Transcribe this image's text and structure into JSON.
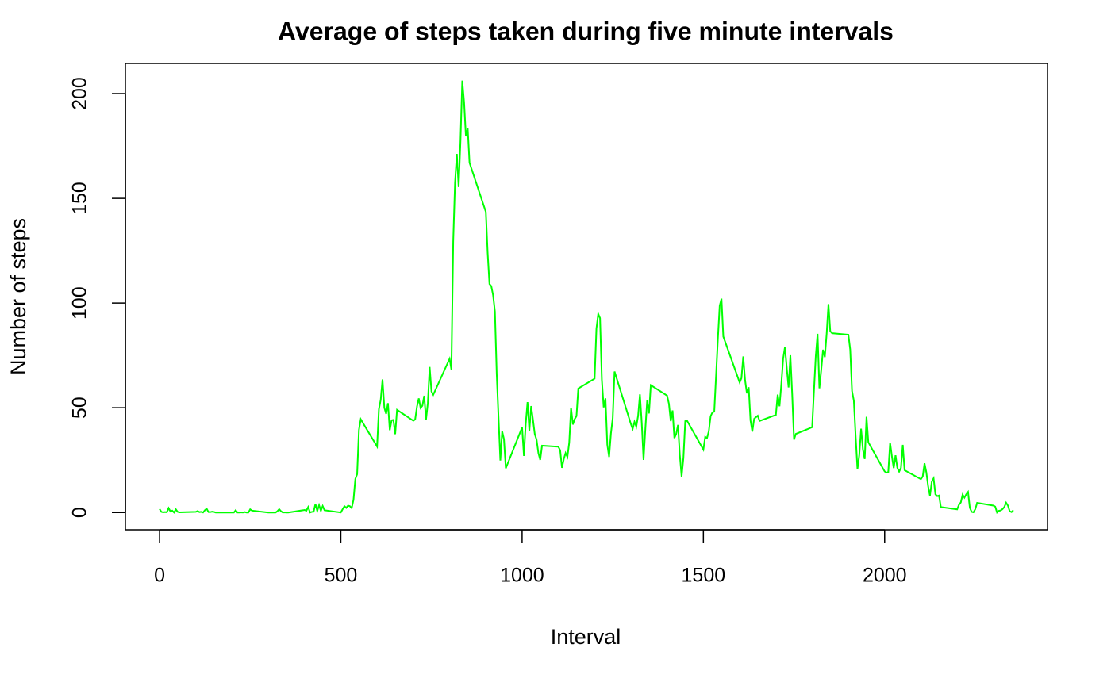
{
  "chart_data": {
    "type": "line",
    "title": "Average of steps taken during five minute intervals",
    "x_label": "Interval",
    "y_label": "Number of steps",
    "color": "#00ff00",
    "x": [
      0,
      5,
      10,
      15,
      20,
      25,
      30,
      35,
      40,
      45,
      50,
      55,
      100,
      105,
      110,
      115,
      120,
      125,
      130,
      135,
      140,
      145,
      150,
      155,
      200,
      205,
      210,
      215,
      220,
      225,
      230,
      235,
      240,
      245,
      250,
      255,
      300,
      305,
      310,
      315,
      320,
      325,
      330,
      335,
      340,
      345,
      350,
      355,
      400,
      405,
      410,
      415,
      420,
      425,
      430,
      435,
      440,
      445,
      450,
      455,
      500,
      505,
      510,
      515,
      520,
      525,
      530,
      535,
      540,
      545,
      550,
      555,
      600,
      605,
      610,
      615,
      620,
      625,
      630,
      635,
      640,
      645,
      650,
      655,
      700,
      705,
      710,
      715,
      720,
      725,
      730,
      735,
      740,
      745,
      750,
      755,
      800,
      805,
      810,
      815,
      820,
      825,
      830,
      835,
      840,
      845,
      850,
      855,
      900,
      905,
      910,
      915,
      920,
      925,
      930,
      935,
      940,
      945,
      950,
      955,
      1000,
      1005,
      1010,
      1015,
      1020,
      1025,
      1030,
      1035,
      1040,
      1045,
      1050,
      1055,
      1100,
      1105,
      1110,
      1115,
      1120,
      1125,
      1130,
      1135,
      1140,
      1145,
      1150,
      1155,
      1200,
      1205,
      1210,
      1215,
      1220,
      1225,
      1230,
      1235,
      1240,
      1245,
      1250,
      1255,
      1300,
      1305,
      1310,
      1315,
      1320,
      1325,
      1330,
      1335,
      1340,
      1345,
      1350,
      1355,
      1400,
      1405,
      1410,
      1415,
      1420,
      1425,
      1430,
      1435,
      1440,
      1445,
      1450,
      1455,
      1500,
      1505,
      1510,
      1515,
      1520,
      1525,
      1530,
      1535,
      1540,
      1545,
      1550,
      1555,
      1600,
      1605,
      1610,
      1615,
      1620,
      1625,
      1630,
      1635,
      1640,
      1645,
      1650,
      1655,
      1700,
      1705,
      1710,
      1715,
      1720,
      1725,
      1730,
      1735,
      1740,
      1745,
      1750,
      1755,
      1800,
      1805,
      1810,
      1815,
      1820,
      1825,
      1830,
      1835,
      1840,
      1845,
      1850,
      1855,
      1900,
      1905,
      1910,
      1915,
      1920,
      1925,
      1930,
      1935,
      1940,
      1945,
      1950,
      1955,
      2000,
      2005,
      2010,
      2015,
      2020,
      2025,
      2030,
      2035,
      2040,
      2045,
      2050,
      2055,
      2100,
      2105,
      2110,
      2115,
      2120,
      2125,
      2130,
      2135,
      2140,
      2145,
      2150,
      2155,
      2200,
      2205,
      2210,
      2215,
      2220,
      2225,
      2230,
      2235,
      2240,
      2245,
      2250,
      2255,
      2300,
      2305,
      2310,
      2315,
      2320,
      2325,
      2330,
      2335,
      2340,
      2345,
      2350,
      2355
    ],
    "values": [
      1.7,
      0.3,
      0.1,
      0.2,
      0.1,
      2.1,
      0.5,
      0.9,
      0,
      1.5,
      0.3,
      0.1,
      0.3,
      0.7,
      0.2,
      0.3,
      0,
      1.1,
      1.8,
      0.2,
      0.2,
      0.4,
      0.3,
      0,
      0,
      0,
      1.1,
      0,
      0,
      0.1,
      0,
      0.2,
      0,
      0,
      1.5,
      0.9,
      0,
      0,
      0,
      0,
      0,
      0.6,
      1.6,
      0.6,
      0,
      0.1,
      0,
      0,
      1.2,
      0.9,
      2.6,
      0,
      0.3,
      0.4,
      4.1,
      0.7,
      3.5,
      0.8,
      3.1,
      1.1,
      0,
      1.6,
      3.0,
      2.2,
      3.3,
      3.0,
      2.1,
      6.1,
      16.0,
      18.3,
      39.5,
      44.5,
      31.5,
      49.3,
      53.8,
      63.5,
      50.0,
      47.1,
      52.2,
      39.3,
      44.0,
      44.2,
      37.4,
      49.0,
      43.8,
      44.4,
      50.5,
      54.5,
      49.9,
      51.0,
      55.7,
      44.3,
      52.3,
      69.5,
      57.8,
      56.2,
      73.4,
      68.2,
      129.4,
      157.5,
      171.2,
      155.4,
      177.3,
      206.2,
      195.9,
      179.6,
      183.4,
      167.0,
      143.5,
      124.0,
      109.1,
      108.1,
      103.7,
      96.0,
      66.2,
      45.2,
      24.8,
      38.8,
      35.0,
      21.1,
      40.6,
      27.0,
      42.4,
      52.7,
      38.9,
      50.8,
      44.3,
      37.4,
      34.7,
      28.3,
      25.1,
      31.9,
      31.4,
      29.7,
      21.3,
      25.5,
      28.4,
      26.5,
      33.4,
      50.0,
      42.0,
      44.6,
      46.0,
      59.2,
      63.9,
      87.7,
      94.8,
      92.8,
      63.4,
      50.2,
      54.5,
      32.4,
      26.5,
      37.7,
      45.1,
      67.3,
      42.3,
      39.9,
      43.3,
      41.0,
      46.2,
      56.4,
      42.8,
      25.1,
      40.0,
      53.5,
      47.3,
      60.8,
      55.8,
      51.9,
      43.6,
      48.7,
      35.5,
      37.5,
      41.8,
      27.5,
      17.1,
      26.1,
      43.6,
      43.8,
      30.0,
      36.1,
      35.5,
      38.8,
      46.0,
      47.8,
      48.1,
      65.3,
      82.9,
      98.7,
      102.1,
      84.0,
      62.1,
      64.1,
      74.5,
      63.2,
      56.9,
      59.8,
      43.9,
      38.6,
      44.7,
      45.5,
      46.2,
      43.7,
      46.6,
      56.3,
      50.7,
      61.2,
      73.4,
      79.0,
      68.9,
      59.7,
      75.1,
      56.5,
      34.8,
      37.5,
      40.7,
      58.0,
      74.7,
      85.3,
      59.3,
      67.8,
      77.7,
      74.2,
      85.3,
      99.5,
      86.6,
      85.6,
      84.9,
      77.8,
      58.0,
      53.4,
      36.3,
      20.7,
      27.4,
      40.0,
      30.2,
      25.5,
      45.7,
      33.5,
      19.6,
      19.0,
      19.3,
      33.3,
      26.8,
      21.2,
      27.3,
      21.3,
      19.5,
      21.3,
      32.3,
      20.2,
      15.9,
      17.2,
      23.5,
      19.2,
      12.5,
      8.0,
      14.7,
      16.3,
      8.7,
      7.8,
      8.1,
      2.6,
      1.5,
      3.7,
      4.8,
      8.5,
      7.1,
      8.7,
      9.8,
      2.2,
      0.3,
      0.1,
      1.6,
      4.6,
      3.3,
      2.8,
      0,
      0.8,
      1.0,
      1.6,
      2.6,
      4.7,
      3.3,
      0.6,
      0.2,
      1.1
    ],
    "xlim": [
      -94.2,
      2449.2
    ],
    "ylim": [
      -8.25,
      214.4
    ],
    "xticks": [
      0,
      500,
      1000,
      1500,
      2000
    ],
    "yticks": [
      0,
      50,
      100,
      150,
      200
    ]
  }
}
